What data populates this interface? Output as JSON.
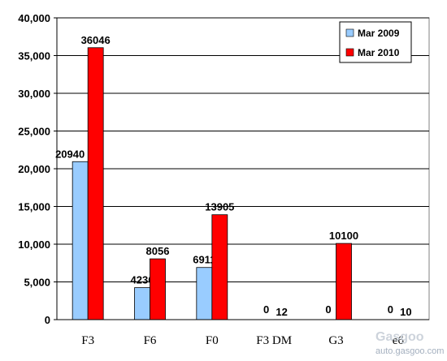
{
  "chart_data": {
    "type": "bar",
    "categories": [
      "F3",
      "F6",
      "F0",
      "F3 DM",
      "G3",
      "e6"
    ],
    "series": [
      {
        "name": "Mar 2009",
        "color": "#99ccff",
        "values": [
          20940,
          4236,
          6911,
          0,
          0,
          0
        ]
      },
      {
        "name": "Mar 2010",
        "color": "#ff0000",
        "values": [
          36046,
          8056,
          13905,
          12,
          10100,
          10
        ]
      }
    ],
    "ylim": [
      0,
      40000
    ],
    "yticks": [
      0,
      5000,
      10000,
      15000,
      20000,
      25000,
      30000,
      35000,
      40000
    ],
    "ytick_labels": [
      "0",
      "5,000",
      "10,000",
      "15,000",
      "20,000",
      "25,000",
      "30,000",
      "35,000",
      "40,000"
    ],
    "grid": true,
    "legend_position": "top-right"
  },
  "watermark": {
    "text": "auto.gasgoo.com",
    "logo": "Gasgoo"
  }
}
